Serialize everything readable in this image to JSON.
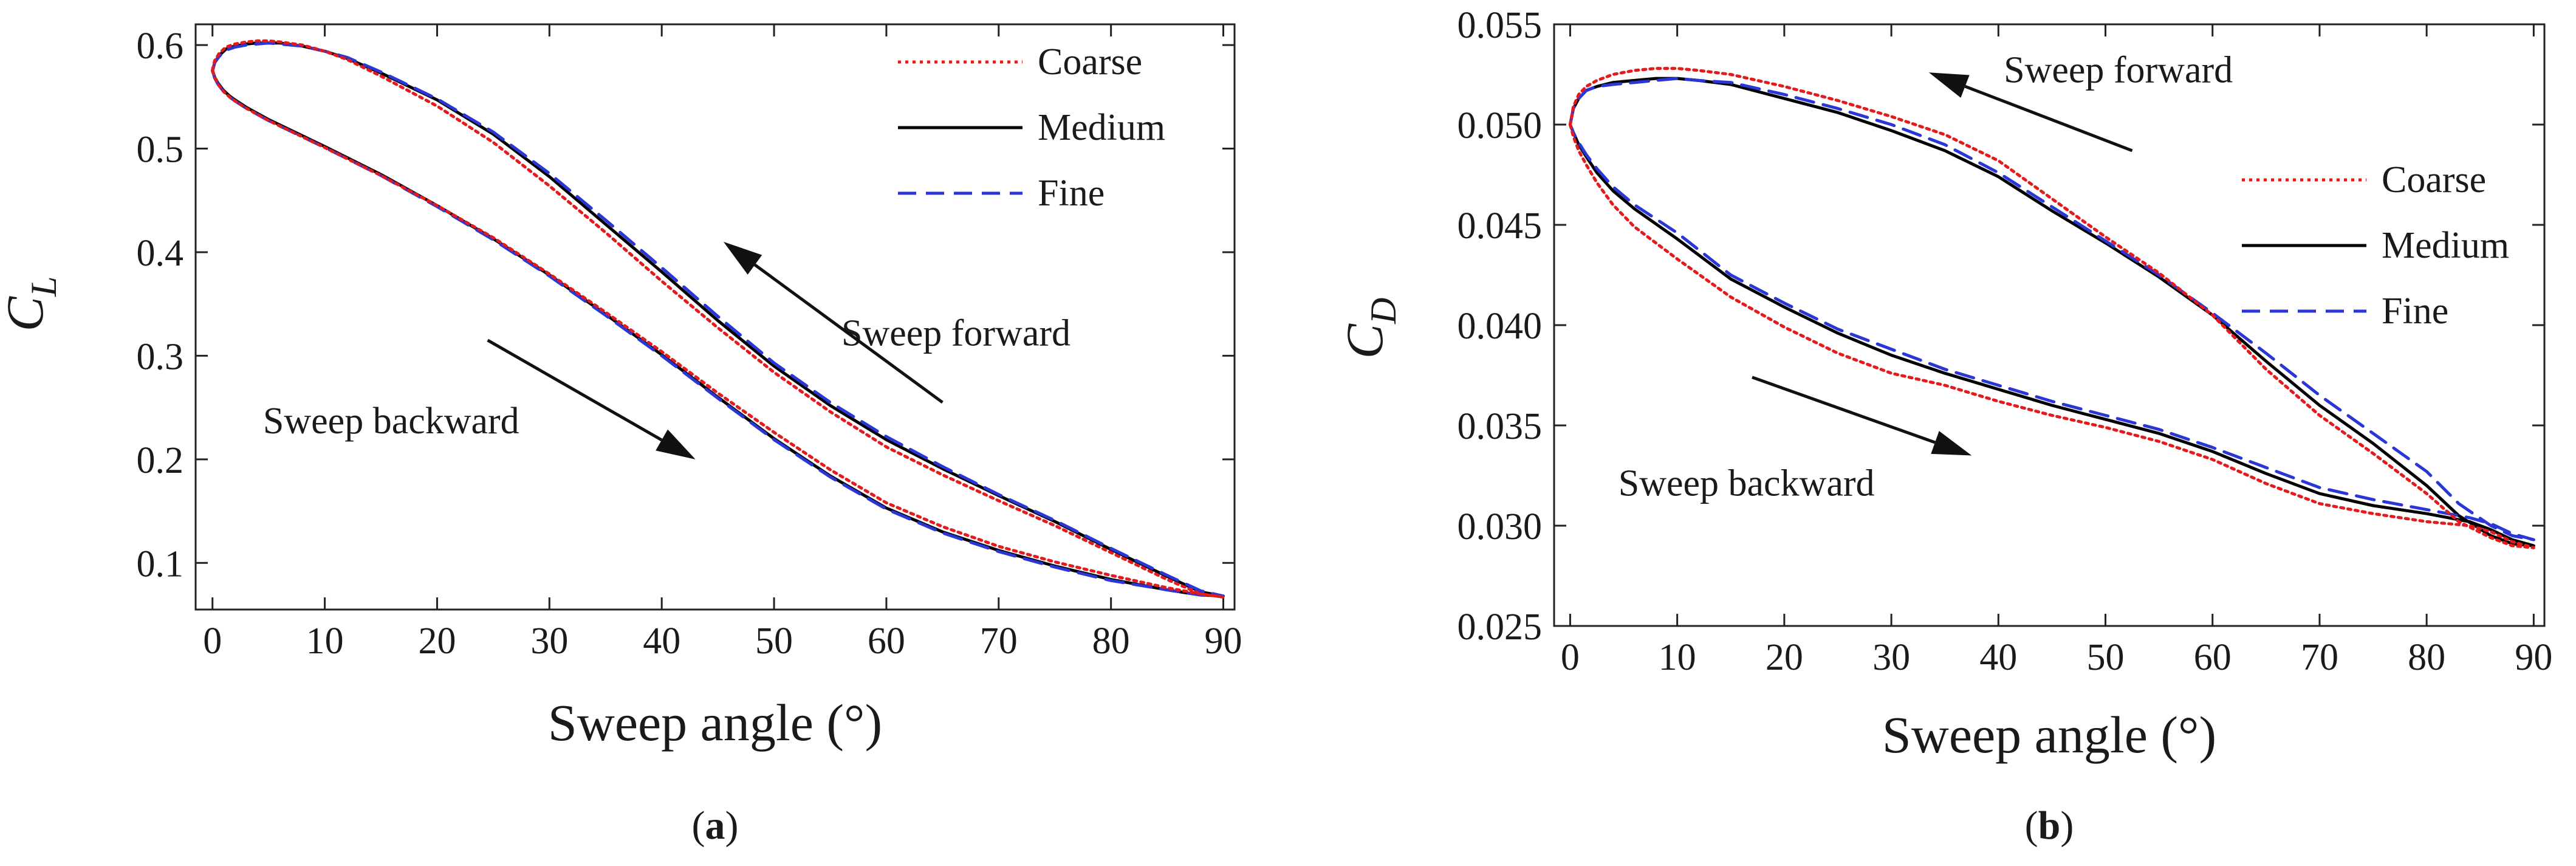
{
  "chart_data": [
    {
      "type": "line",
      "panel_label": "a",
      "xlabel": "Sweep angle (°)",
      "ylabel": "C",
      "ylabel_sub": "L",
      "xlim": [
        -1.5,
        91
      ],
      "ylim": [
        0.055,
        0.62
      ],
      "xticks": [
        0,
        10,
        20,
        30,
        40,
        50,
        60,
        70,
        80,
        90
      ],
      "yticks": [
        0.1,
        0.2,
        0.3,
        0.4,
        0.5,
        0.6
      ],
      "ytick_labels": [
        "0.1",
        "0.2",
        "0.3",
        "0.4",
        "0.5",
        "0.6"
      ],
      "legend": [
        "Coarse",
        "Medium",
        "Fine"
      ],
      "legend_position": "top-right",
      "annotations": [
        {
          "text": "Sweep forward",
          "x": 56,
          "y": 0.31,
          "arrow_from": [
            65,
            0.255
          ],
          "arrow_to": [
            45.5,
            0.41
          ]
        },
        {
          "text": "Sweep backward",
          "x": 4.5,
          "y": 0.225,
          "arrow_from": [
            24.5,
            0.315
          ],
          "arrow_to": [
            43,
            0.2
          ]
        }
      ],
      "series": [
        {
          "name": "Medium",
          "color": "#000000",
          "dash": "solid",
          "x": [
            0,
            0.2,
            0.6,
            1.2,
            2,
            3,
            4,
            5,
            6,
            8,
            10,
            12,
            15,
            20,
            25,
            30,
            35,
            40,
            45,
            50,
            55,
            60,
            65,
            70,
            75,
            80,
            85,
            88,
            90,
            88,
            85,
            80,
            75,
            70,
            65,
            60,
            55,
            50,
            45,
            40,
            35,
            30,
            25,
            20,
            15,
            10,
            5,
            3,
            2,
            1.5,
            1,
            0.5,
            0.2,
            0
          ],
          "y": [
            0.575,
            0.583,
            0.59,
            0.596,
            0.599,
            0.601,
            0.602,
            0.602,
            0.602,
            0.599,
            0.594,
            0.587,
            0.573,
            0.547,
            0.514,
            0.473,
            0.427,
            0.381,
            0.334,
            0.29,
            0.252,
            0.219,
            0.191,
            0.165,
            0.14,
            0.113,
            0.087,
            0.072,
            0.068,
            0.069,
            0.074,
            0.084,
            0.097,
            0.112,
            0.13,
            0.153,
            0.184,
            0.22,
            0.26,
            0.301,
            0.34,
            0.378,
            0.413,
            0.445,
            0.475,
            0.502,
            0.528,
            0.54,
            0.547,
            0.551,
            0.556,
            0.563,
            0.569,
            0.575
          ]
        },
        {
          "name": "Fine",
          "color": "#2a36d6",
          "dash": "dashed",
          "x": [
            0,
            0.2,
            0.6,
            1.2,
            2,
            3,
            4,
            5,
            6,
            8,
            10,
            12,
            15,
            20,
            25,
            30,
            35,
            40,
            45,
            50,
            55,
            60,
            65,
            70,
            75,
            80,
            85,
            88,
            90,
            88,
            85,
            80,
            75,
            70,
            65,
            60,
            55,
            50,
            45,
            40,
            35,
            30,
            25,
            20,
            15,
            10,
            5,
            3,
            2,
            1.5,
            1,
            0.5,
            0.2,
            0
          ],
          "y": [
            0.575,
            0.583,
            0.589,
            0.595,
            0.598,
            0.6,
            0.601,
            0.602,
            0.601,
            0.599,
            0.594,
            0.588,
            0.574,
            0.548,
            0.516,
            0.476,
            0.431,
            0.385,
            0.338,
            0.293,
            0.255,
            0.222,
            0.193,
            0.166,
            0.141,
            0.114,
            0.088,
            0.073,
            0.068,
            0.069,
            0.074,
            0.083,
            0.096,
            0.111,
            0.129,
            0.152,
            0.183,
            0.219,
            0.259,
            0.3,
            0.339,
            0.377,
            0.412,
            0.444,
            0.474,
            0.501,
            0.527,
            0.539,
            0.546,
            0.55,
            0.555,
            0.562,
            0.568,
            0.575
          ]
        },
        {
          "name": "Coarse",
          "color": "#e41a1c",
          "dash": "dotted",
          "x": [
            0,
            0.2,
            0.6,
            1.2,
            2,
            3,
            4,
            5,
            6,
            8,
            10,
            12,
            15,
            20,
            25,
            30,
            35,
            40,
            45,
            50,
            55,
            60,
            65,
            70,
            75,
            80,
            85,
            88,
            90,
            88,
            85,
            80,
            75,
            70,
            65,
            60,
            55,
            50,
            45,
            40,
            35,
            30,
            25,
            20,
            15,
            10,
            5,
            3,
            2,
            1.5,
            1,
            0.5,
            0.2,
            0
          ],
          "y": [
            0.576,
            0.585,
            0.592,
            0.598,
            0.601,
            0.603,
            0.604,
            0.604,
            0.603,
            0.6,
            0.594,
            0.586,
            0.57,
            0.541,
            0.506,
            0.464,
            0.419,
            0.372,
            0.327,
            0.284,
            0.246,
            0.212,
            0.185,
            0.16,
            0.136,
            0.11,
            0.084,
            0.07,
            0.067,
            0.07,
            0.076,
            0.088,
            0.101,
            0.116,
            0.135,
            0.158,
            0.19,
            0.226,
            0.264,
            0.304,
            0.342,
            0.379,
            0.414,
            0.445,
            0.474,
            0.501,
            0.527,
            0.539,
            0.546,
            0.55,
            0.555,
            0.562,
            0.569,
            0.576
          ]
        }
      ]
    },
    {
      "type": "line",
      "panel_label": "b",
      "xlabel": "Sweep angle (°)",
      "ylabel": "C",
      "ylabel_sub": "D",
      "xlim": [
        -1.5,
        91
      ],
      "ylim": [
        0.025,
        0.055
      ],
      "xticks": [
        0,
        10,
        20,
        30,
        40,
        50,
        60,
        70,
        80,
        90
      ],
      "yticks": [
        0.025,
        0.03,
        0.035,
        0.04,
        0.045,
        0.05,
        0.055
      ],
      "ytick_labels": [
        "0.025",
        "0.030",
        "0.035",
        "0.040",
        "0.045",
        "0.050",
        "0.055"
      ],
      "legend": [
        "Coarse",
        "Medium",
        "Fine"
      ],
      "legend_position": "right",
      "annotations": [
        {
          "text": "Sweep forward",
          "x": 40.5,
          "y": 0.0521,
          "arrow_from": [
            52.5,
            0.0487
          ],
          "arrow_to": [
            33.5,
            0.0526
          ]
        },
        {
          "text": "Sweep backward",
          "x": 4.5,
          "y": 0.0315,
          "arrow_from": [
            17,
            0.0374
          ],
          "arrow_to": [
            37.5,
            0.0335
          ]
        }
      ],
      "series": [
        {
          "name": "Medium",
          "color": "#000000",
          "dash": "solid",
          "x": [
            0,
            0.3,
            0.8,
            1.5,
            2.5,
            4,
            6,
            8,
            10,
            12,
            15,
            20,
            25,
            30,
            35,
            40,
            45,
            50,
            55,
            60,
            65,
            70,
            75,
            80,
            83,
            86,
            88,
            90,
            88,
            86,
            84,
            80,
            75,
            70,
            65,
            60,
            55,
            50,
            45,
            40,
            35,
            30,
            25,
            20,
            15,
            10,
            6,
            4,
            2.5,
            1.5,
            0.8,
            0.3,
            0
          ],
          "y": [
            0.05,
            0.0508,
            0.0513,
            0.0517,
            0.0519,
            0.0521,
            0.0522,
            0.0523,
            0.0523,
            0.0522,
            0.052,
            0.0513,
            0.0506,
            0.0497,
            0.0487,
            0.0474,
            0.0457,
            0.0441,
            0.0424,
            0.0405,
            0.0382,
            0.036,
            0.0341,
            0.032,
            0.0305,
            0.0295,
            0.0291,
            0.029,
            0.0293,
            0.0298,
            0.0302,
            0.0306,
            0.031,
            0.0316,
            0.0326,
            0.0337,
            0.0346,
            0.0353,
            0.036,
            0.0368,
            0.0376,
            0.0385,
            0.0396,
            0.0409,
            0.0423,
            0.0443,
            0.0458,
            0.0467,
            0.0476,
            0.0484,
            0.049,
            0.0496,
            0.05
          ]
        },
        {
          "name": "Fine",
          "color": "#2a36d6",
          "dash": "dashed",
          "x": [
            0,
            0.3,
            0.8,
            1.5,
            2.5,
            4,
            6,
            8,
            10,
            12,
            15,
            20,
            25,
            30,
            35,
            40,
            45,
            50,
            55,
            60,
            65,
            70,
            75,
            80,
            83,
            86,
            88,
            90,
            88,
            86,
            84,
            80,
            75,
            70,
            65,
            60,
            55,
            50,
            45,
            40,
            35,
            30,
            25,
            20,
            15,
            10,
            6,
            4,
            2.5,
            1.5,
            0.8,
            0.3,
            0
          ],
          "y": [
            0.05,
            0.0508,
            0.0513,
            0.0517,
            0.0519,
            0.052,
            0.0521,
            0.0522,
            0.0523,
            0.0522,
            0.0521,
            0.0515,
            0.0508,
            0.05,
            0.049,
            0.0476,
            0.0459,
            0.0442,
            0.0425,
            0.0406,
            0.0386,
            0.0365,
            0.0346,
            0.0327,
            0.0311,
            0.03,
            0.0295,
            0.0293,
            0.0296,
            0.0301,
            0.0304,
            0.0308,
            0.0313,
            0.0319,
            0.0329,
            0.0339,
            0.0348,
            0.0355,
            0.0362,
            0.037,
            0.0378,
            0.0388,
            0.0398,
            0.0411,
            0.0425,
            0.0446,
            0.046,
            0.0469,
            0.0478,
            0.0485,
            0.0491,
            0.0496,
            0.05
          ]
        },
        {
          "name": "Coarse",
          "color": "#e41a1c",
          "dash": "dotted",
          "x": [
            0,
            0.3,
            0.8,
            1.5,
            2.5,
            4,
            6,
            8,
            10,
            12,
            15,
            20,
            25,
            30,
            35,
            40,
            45,
            50,
            55,
            60,
            65,
            70,
            75,
            80,
            83,
            86,
            88,
            90,
            88,
            86,
            84,
            80,
            75,
            70,
            65,
            60,
            55,
            50,
            45,
            40,
            35,
            30,
            25,
            20,
            15,
            10,
            6,
            4,
            2.5,
            1.5,
            0.8,
            0.3,
            0
          ],
          "y": [
            0.05,
            0.0509,
            0.0515,
            0.0519,
            0.0522,
            0.0525,
            0.0527,
            0.0528,
            0.0528,
            0.0527,
            0.0525,
            0.0519,
            0.0512,
            0.0504,
            0.0495,
            0.0482,
            0.0463,
            0.0444,
            0.0426,
            0.0405,
            0.0378,
            0.0355,
            0.0336,
            0.0316,
            0.0302,
            0.0294,
            0.029,
            0.0289,
            0.0292,
            0.0297,
            0.03,
            0.0302,
            0.0306,
            0.0311,
            0.0321,
            0.0333,
            0.0342,
            0.0349,
            0.0355,
            0.0362,
            0.037,
            0.0376,
            0.0386,
            0.0399,
            0.0414,
            0.0433,
            0.0449,
            0.046,
            0.0471,
            0.048,
            0.0487,
            0.0494,
            0.05
          ]
        }
      ]
    }
  ]
}
